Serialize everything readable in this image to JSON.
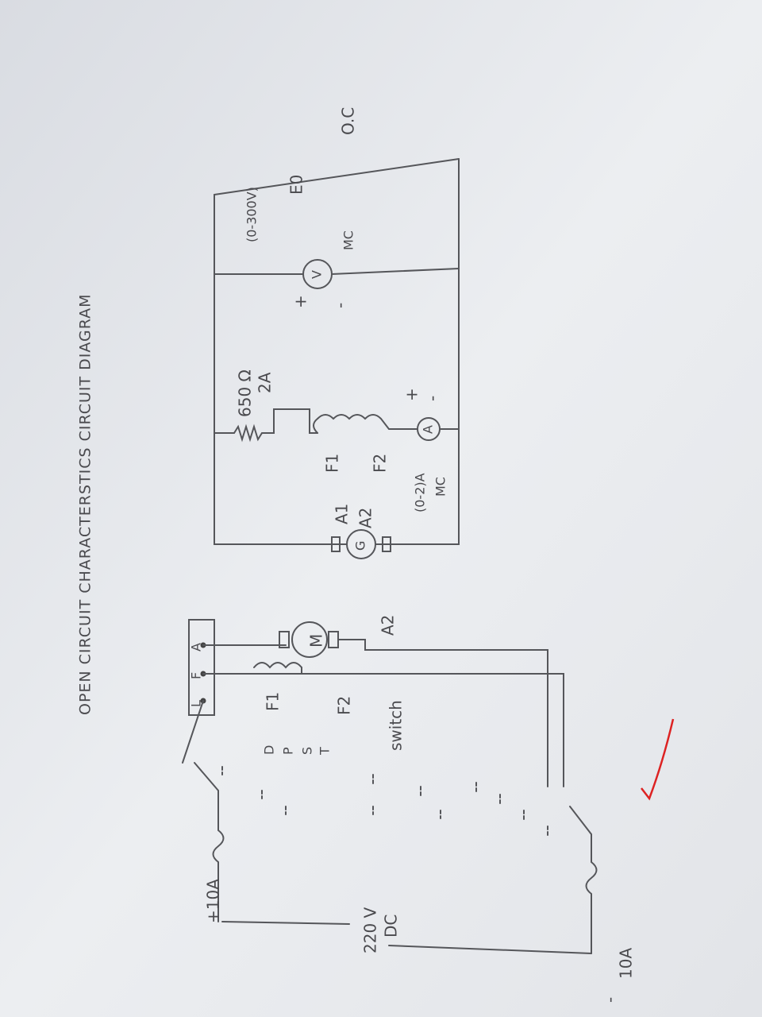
{
  "title": "OPEN CIRCUIT CHARACTERSTICS CIRCUIT DIAGRAM",
  "motor_circuit": {
    "supply_positive": "+10A",
    "supply_voltage": "220 V",
    "supply_type": "DC",
    "supply_negative": "-",
    "negative_fuse": "10A",
    "dpst_letters": [
      "D",
      "P",
      "S",
      "T"
    ],
    "switch": "switch",
    "starter_terminals": [
      "L",
      "F",
      "A"
    ],
    "field_terminals": [
      "F1",
      "F2"
    ],
    "motor": "M",
    "armature_terminal": "A2"
  },
  "generator_circuit": {
    "generator": "G",
    "armature_terminals": [
      "A1",
      "A2"
    ],
    "field_terminals": [
      "F1",
      "F2"
    ],
    "rheostat": "650 Ω",
    "rheostat_rating": "2A",
    "ammeter": "A",
    "ammeter_range": "(0-2)A",
    "ammeter_type": "MC",
    "ammeter_polarity": [
      "+",
      "-"
    ],
    "voltmeter": "V",
    "voltmeter_range": "(0-300V)",
    "voltmeter_type": "MC",
    "voltmeter_polarity": [
      "+",
      "-"
    ],
    "output": "E0",
    "label": "O.C"
  }
}
